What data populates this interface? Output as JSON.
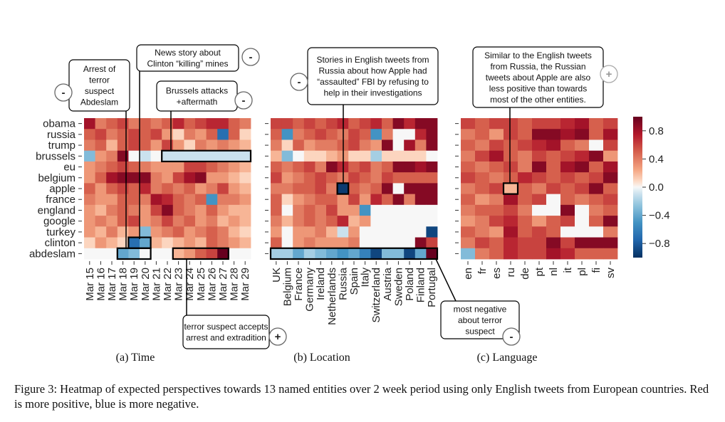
{
  "caption": "Figure 3:  Heatmap of expected perspectives towards 13 named entities over 2 week period using only English tweets from European countries. Red is more positive, blue is more negative.",
  "chart_data": [
    {
      "type": "heatmap",
      "subtitle": "(a) Time",
      "rows": [
        "obama",
        "russia",
        "trump",
        "brussels",
        "eu",
        "belgium",
        "apple",
        "france",
        "england",
        "google",
        "turkey",
        "clinton",
        "abdeslam"
      ],
      "columns": [
        "Mar 15",
        "Mar 16",
        "Mar 17",
        "Mar 18",
        "Mar 19",
        "Mar 20",
        "Mar 21",
        "Mar 22",
        "Mar 23",
        "Mar 24",
        "Mar 25",
        "Mar 26",
        "Mar 27",
        "Mar 28",
        "Mar 29"
      ],
      "values": [
        [
          0.8,
          0.4,
          0.5,
          0.6,
          0.4,
          0.5,
          0.4,
          0.5,
          0.7,
          0.5,
          0.6,
          0.7,
          0.7,
          0.5,
          0.4
        ],
        [
          0.5,
          0.6,
          0.4,
          0.5,
          0.6,
          0.5,
          0.6,
          0.3,
          0.1,
          0.4,
          0.3,
          0.5,
          -0.7,
          0.5,
          0.1
        ],
        [
          0.4,
          0.5,
          0.2,
          0.5,
          0.6,
          0.5,
          0.3,
          0.6,
          0.3,
          0.1,
          0.4,
          0.3,
          0.4,
          0.3,
          0.2
        ],
        [
          -0.3,
          0.3,
          0.4,
          0.9,
          0.0,
          -0.1,
          0.0,
          -0.1,
          -0.1,
          -0.1,
          -0.1,
          -0.1,
          -0.1,
          -0.1,
          -0.1
        ],
        [
          0.3,
          0.4,
          0.5,
          0.6,
          0.5,
          0.4,
          0.3,
          0.3,
          0.3,
          0.6,
          0.6,
          0.5,
          0.4,
          0.3,
          0.2
        ],
        [
          0.3,
          0.5,
          0.8,
          0.9,
          0.9,
          0.9,
          0.4,
          0.3,
          0.6,
          0.8,
          0.9,
          0.3,
          0.3,
          0.2,
          0.1
        ],
        [
          0.5,
          0.3,
          0.5,
          0.6,
          0.5,
          0.7,
          0.4,
          0.5,
          0.4,
          0.5,
          0.3,
          0.4,
          0.6,
          0.3,
          0.2
        ],
        [
          0.4,
          0.3,
          0.3,
          0.5,
          0.5,
          0.4,
          0.8,
          0.7,
          0.5,
          0.4,
          0.5,
          -0.5,
          0.4,
          0.4,
          0.3
        ],
        [
          0.3,
          0.2,
          0.4,
          0.5,
          0.4,
          0.3,
          0.6,
          0.9,
          0.5,
          0.4,
          0.3,
          0.5,
          0.3,
          0.2,
          0.2
        ],
        [
          0.3,
          0.4,
          0.3,
          0.5,
          0.6,
          0.3,
          0.4,
          0.6,
          0.4,
          0.5,
          0.3,
          0.4,
          0.2,
          0.3,
          0.2
        ],
        [
          0.3,
          0.2,
          0.4,
          0.2,
          0.3,
          -0.3,
          0.3,
          0.4,
          0.5,
          0.3,
          0.4,
          0.5,
          0.4,
          0.2,
          0.1
        ],
        [
          0.1,
          0.3,
          0.2,
          0.1,
          -0.7,
          -0.4,
          0.2,
          0.1,
          0.2,
          0.3,
          0.2,
          0.5,
          0.4,
          0.3,
          0.2
        ],
        [
          0.0,
          0.0,
          0.0,
          -0.4,
          -0.3,
          0.0,
          0.0,
          0.0,
          0.2,
          0.3,
          0.5,
          0.6,
          1.0,
          0.0,
          0.0
        ]
      ],
      "annotations": [
        {
          "text": [
            "Arrest of",
            "terror",
            "suspect",
            "Abdeslam"
          ],
          "sign": "-"
        },
        {
          "text": [
            "News story about",
            "Clinton “killing” mines"
          ],
          "sign": "-"
        },
        {
          "text": [
            "Brussels attacks",
            "+aftermath"
          ],
          "sign": "-"
        },
        {
          "text": [
            "terror suspect accepts",
            "arrest and extradition"
          ],
          "sign": "+"
        }
      ]
    },
    {
      "type": "heatmap",
      "subtitle": "(b) Location",
      "rows": [
        "obama",
        "russia",
        "trump",
        "brussels",
        "eu",
        "belgium",
        "apple",
        "france",
        "england",
        "google",
        "turkey",
        "clinton",
        "abdeslam"
      ],
      "columns": [
        "UK",
        "Belgium",
        "France",
        "Germany",
        "Ireland",
        "Netherlands",
        "Russia",
        "Spain",
        "Italy",
        "Switzerland",
        "Austria",
        "Sweden",
        "Poland",
        "Finland",
        "Portugal"
      ],
      "values": [
        [
          0.6,
          0.6,
          0.5,
          0.6,
          0.5,
          0.6,
          0.7,
          0.5,
          0.6,
          0.7,
          0.5,
          0.9,
          0.7,
          0.9,
          0.9
        ],
        [
          0.5,
          -0.5,
          0.4,
          0.5,
          0.6,
          0.5,
          0.4,
          0.6,
          0.5,
          -0.5,
          0.4,
          0.0,
          0.0,
          0.7,
          0.9
        ],
        [
          0.4,
          0.1,
          0.5,
          0.3,
          0.4,
          0.4,
          0.5,
          0.6,
          0.4,
          0.3,
          0.9,
          0.0,
          0.8,
          0.4,
          0.9
        ],
        [
          0.2,
          -0.3,
          0.0,
          0.1,
          0.1,
          0.2,
          0.3,
          0.1,
          0.1,
          -0.2,
          0.1,
          0.1,
          0.1,
          0.1,
          0.0
        ],
        [
          0.5,
          0.4,
          0.5,
          0.6,
          0.4,
          0.9,
          0.7,
          0.5,
          0.6,
          0.4,
          0.5,
          0.9,
          0.9,
          0.8,
          0.9
        ],
        [
          0.6,
          0.3,
          0.4,
          0.5,
          0.6,
          0.5,
          0.4,
          0.6,
          0.5,
          0.4,
          0.6,
          0.5,
          0.5,
          0.5,
          0.5
        ],
        [
          0.4,
          0.4,
          0.5,
          0.5,
          0.6,
          0.4,
          -0.95,
          0.5,
          0.4,
          0.5,
          0.9,
          0.0,
          0.9,
          0.9,
          0.9
        ],
        [
          0.5,
          0.1,
          0.3,
          0.4,
          0.5,
          0.5,
          0.3,
          0.6,
          0.3,
          0.7,
          0.5,
          0.9,
          0.4,
          0.9,
          0.9
        ],
        [
          0.5,
          0.0,
          0.4,
          0.5,
          0.4,
          0.6,
          0.3,
          0.3,
          -0.5,
          0.0,
          0.0,
          0.0,
          0.0,
          0.0,
          0.0
        ],
        [
          0.4,
          0.2,
          0.4,
          0.5,
          0.4,
          0.5,
          0.7,
          0.2,
          0.3,
          0.0,
          0.0,
          0.0,
          0.0,
          0.0,
          0.0
        ],
        [
          0.3,
          0.0,
          0.3,
          0.3,
          0.4,
          0.2,
          -0.1,
          0.3,
          0.0,
          0.0,
          0.0,
          0.0,
          0.0,
          0.0,
          -0.9
        ],
        [
          0.5,
          0.0,
          0.3,
          0.4,
          0.3,
          0.3,
          0.3,
          0.4,
          0.0,
          0.0,
          0.0,
          0.0,
          0.0,
          0.9,
          0.6
        ],
        [
          -0.2,
          -0.2,
          -0.4,
          -0.2,
          -0.3,
          -0.4,
          -0.5,
          -0.4,
          -0.6,
          -0.9,
          -0.3,
          -0.3,
          -0.9,
          -0.4,
          1.0
        ]
      ],
      "annotations": [
        {
          "text": [
            "Stories in English tweets from",
            "Russia about how Apple had",
            "“assaulted” FBI by refusing to",
            "help in their investigations"
          ],
          "sign": "-"
        },
        {
          "text": [
            "most negative",
            "about terror",
            "suspect"
          ],
          "sign": "-"
        }
      ]
    },
    {
      "type": "heatmap",
      "subtitle": "(c) Language",
      "rows": [
        "obama",
        "russia",
        "trump",
        "brussels",
        "eu",
        "belgium",
        "apple",
        "france",
        "england",
        "google",
        "turkey",
        "clinton",
        "abdeslam"
      ],
      "columns": [
        "en",
        "fr",
        "es",
        "ru",
        "de",
        "pt",
        "nl",
        "it",
        "pl",
        "fi",
        "sv"
      ],
      "values": [
        [
          0.6,
          0.5,
          0.6,
          0.6,
          0.5,
          0.6,
          0.6,
          0.7,
          0.8,
          0.5,
          0.6
        ],
        [
          0.4,
          0.5,
          0.3,
          0.6,
          0.5,
          0.9,
          0.9,
          0.8,
          0.9,
          0.5,
          0.8
        ],
        [
          0.5,
          0.4,
          0.6,
          0.5,
          0.6,
          0.7,
          0.8,
          0.5,
          0.4,
          0.0,
          0.6
        ],
        [
          0.4,
          0.6,
          0.8,
          0.5,
          0.4,
          0.6,
          0.5,
          0.6,
          0.7,
          0.9,
          0.3
        ],
        [
          0.5,
          0.4,
          0.5,
          0.6,
          0.4,
          0.9,
          0.5,
          0.8,
          0.9,
          0.5,
          0.8
        ],
        [
          0.6,
          0.5,
          0.4,
          0.5,
          0.7,
          0.6,
          0.5,
          0.6,
          0.5,
          0.6,
          0.9
        ],
        [
          0.4,
          0.5,
          0.6,
          0.2,
          0.5,
          0.4,
          0.6,
          0.5,
          0.6,
          0.9,
          0.5
        ],
        [
          0.5,
          0.3,
          0.4,
          0.8,
          0.5,
          0.6,
          0.0,
          0.5,
          0.4,
          0.5,
          0.6
        ],
        [
          0.4,
          0.5,
          0.5,
          0.6,
          0.4,
          0.0,
          0.0,
          0.9,
          0.0,
          0.4,
          0.5
        ],
        [
          0.3,
          0.4,
          0.6,
          0.7,
          0.5,
          0.3,
          0.5,
          0.6,
          0.0,
          0.5,
          0.9
        ],
        [
          0.5,
          0.4,
          0.3,
          0.8,
          0.5,
          0.6,
          0.5,
          0.0,
          0.0,
          0.0,
          0.4
        ],
        [
          0.4,
          0.6,
          0.5,
          0.7,
          0.6,
          0.6,
          0.9,
          0.6,
          0.9,
          0.9,
          0.9
        ],
        [
          -0.3,
          0.4,
          0.5,
          0.7,
          0.6,
          0.6,
          0.8,
          0.7,
          0.5,
          0.5,
          0.5
        ]
      ],
      "annotations": [
        {
          "text": [
            "Similar to the English tweets",
            "from Russia, the Russian",
            "tweets about Apple are also",
            "less positive than towards",
            "most of the other entities."
          ],
          "sign": "+"
        }
      ]
    }
  ],
  "colorbar": {
    "ticks": [
      "0.8",
      "0.4",
      "0.0",
      "−0.4",
      "−0.8"
    ],
    "tick_values": [
      0.8,
      0.4,
      0.0,
      -0.4,
      -0.8
    ],
    "range": [
      -1,
      1
    ]
  }
}
